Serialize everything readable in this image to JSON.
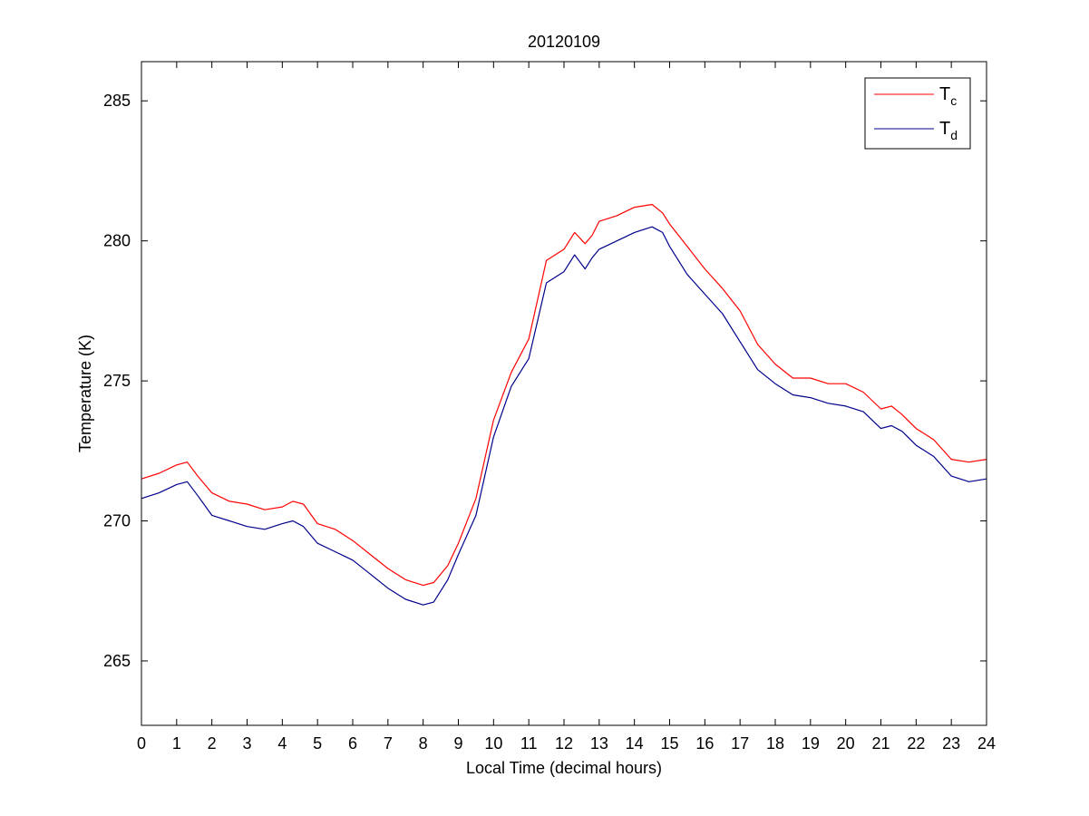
{
  "chart_data": {
    "type": "line",
    "title": "20120109",
    "xlabel": "Local Time (decimal hours)",
    "ylabel": "Temperature (K)",
    "xlim": [
      0,
      24
    ],
    "ylim": [
      262.7,
      286.4
    ],
    "xticks": [
      0,
      1,
      2,
      3,
      4,
      5,
      6,
      7,
      8,
      9,
      10,
      11,
      12,
      13,
      14,
      15,
      16,
      17,
      18,
      19,
      20,
      21,
      22,
      23,
      24
    ],
    "yticks": [
      265,
      270,
      275,
      280,
      285
    ],
    "grid": false,
    "legend_position": "top-right",
    "series": [
      {
        "name": "T",
        "name_sub": "c",
        "color": "#ff0000",
        "x": [
          0,
          0.5,
          1,
          1.3,
          1.6,
          2,
          2.5,
          3,
          3.5,
          4,
          4.3,
          4.6,
          5,
          5.5,
          6,
          6.5,
          7,
          7.5,
          8,
          8.3,
          8.7,
          9,
          9.5,
          10,
          10.5,
          11,
          11.5,
          12,
          12.3,
          12.6,
          12.8,
          13,
          13.5,
          14,
          14.5,
          14.8,
          15,
          15.5,
          16,
          16.5,
          17,
          17.5,
          18,
          18.5,
          19,
          19.5,
          20,
          20.5,
          21,
          21.3,
          21.6,
          22,
          22.5,
          23,
          23.5,
          24
        ],
        "y": [
          271.5,
          271.7,
          272.0,
          272.1,
          271.6,
          271.0,
          270.7,
          270.6,
          270.4,
          270.5,
          270.7,
          270.6,
          269.9,
          269.7,
          269.3,
          268.8,
          268.3,
          267.9,
          267.7,
          267.8,
          268.4,
          269.2,
          270.8,
          273.6,
          275.3,
          276.5,
          279.3,
          279.7,
          280.3,
          279.9,
          280.2,
          280.7,
          280.9,
          281.2,
          281.3,
          281.0,
          280.6,
          279.8,
          279.0,
          278.3,
          277.5,
          276.3,
          275.6,
          275.1,
          275.1,
          274.9,
          274.9,
          274.6,
          274.0,
          274.1,
          273.8,
          273.3,
          272.9,
          272.2,
          272.1,
          272.2
        ]
      },
      {
        "name": "T",
        "name_sub": "d",
        "color": "#00008b",
        "x": [
          0,
          0.5,
          1,
          1.3,
          1.6,
          2,
          2.5,
          3,
          3.5,
          4,
          4.3,
          4.6,
          5,
          5.5,
          6,
          6.5,
          7,
          7.5,
          8,
          8.3,
          8.7,
          9,
          9.5,
          10,
          10.5,
          11,
          11.5,
          12,
          12.3,
          12.6,
          12.8,
          13,
          13.5,
          14,
          14.5,
          14.8,
          15,
          15.5,
          16,
          16.5,
          17,
          17.5,
          18,
          18.5,
          19,
          19.5,
          20,
          20.5,
          21,
          21.3,
          21.6,
          22,
          22.5,
          23,
          23.5,
          24
        ],
        "y": [
          270.8,
          271.0,
          271.3,
          271.4,
          270.9,
          270.2,
          270.0,
          269.8,
          269.7,
          269.9,
          270.0,
          269.8,
          269.2,
          268.9,
          268.6,
          268.1,
          267.6,
          267.2,
          267.0,
          267.1,
          267.9,
          268.8,
          270.2,
          273.0,
          274.8,
          275.8,
          278.5,
          278.9,
          279.5,
          279.0,
          279.4,
          279.7,
          280.0,
          280.3,
          280.5,
          280.3,
          279.8,
          278.8,
          278.1,
          277.4,
          276.4,
          275.4,
          274.9,
          274.5,
          274.4,
          274.2,
          274.1,
          273.9,
          273.3,
          273.4,
          273.2,
          272.7,
          272.3,
          271.6,
          271.4,
          271.5
        ]
      }
    ]
  }
}
